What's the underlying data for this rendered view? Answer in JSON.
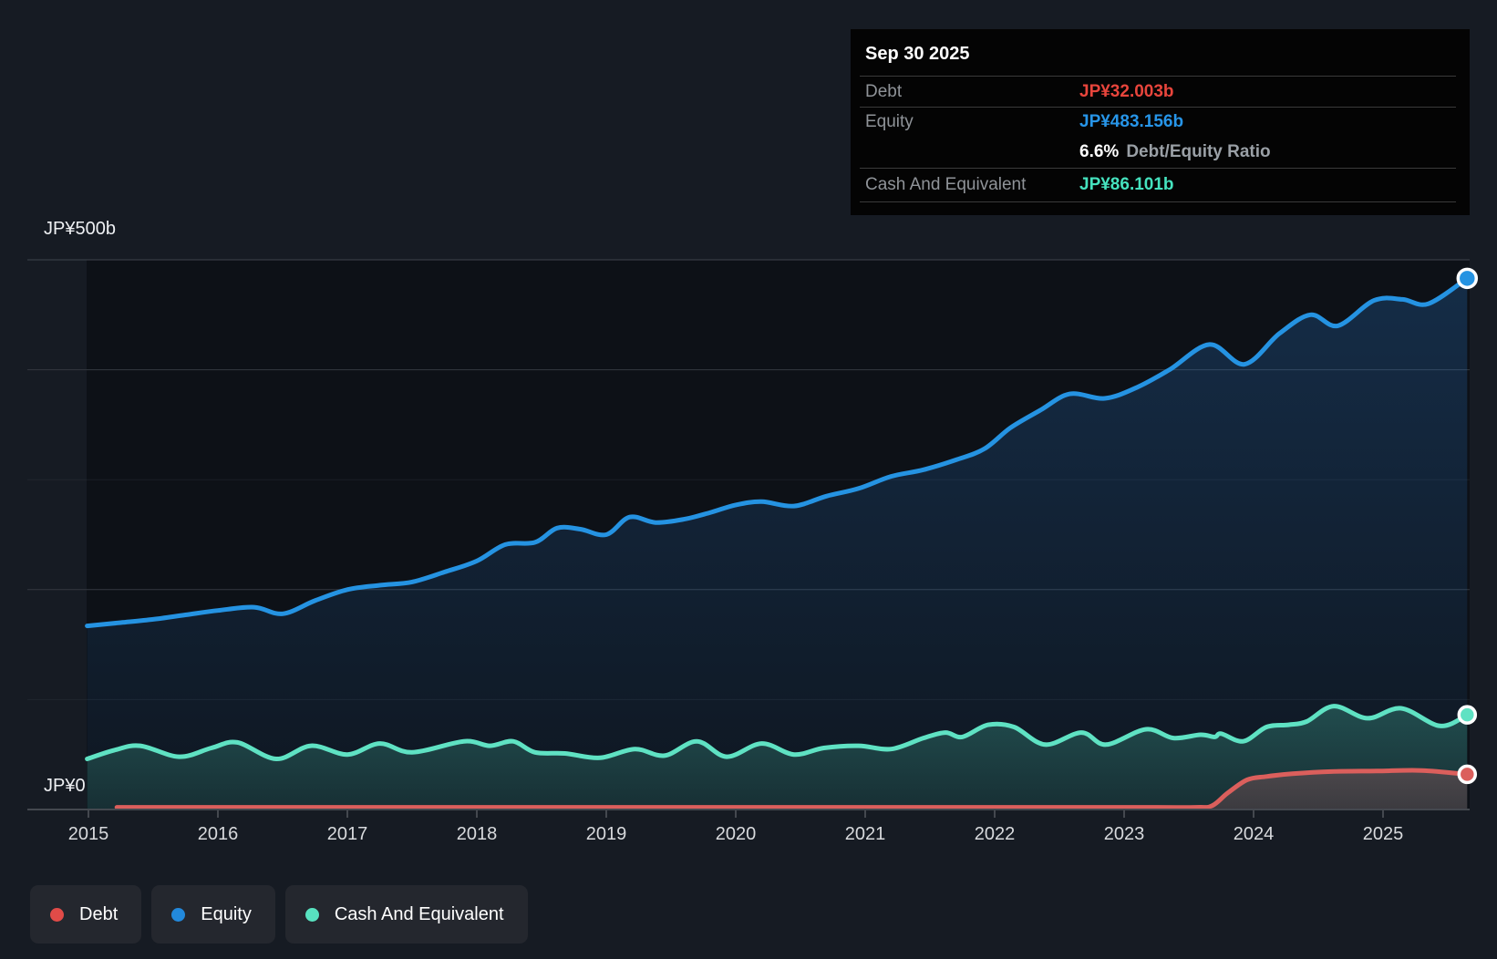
{
  "tooltip": {
    "date": "Sep 30 2025",
    "rows": [
      {
        "label": "Debt",
        "value": "JP¥32.003b",
        "color": "#e8453c"
      },
      {
        "label": "Equity",
        "value": "JP¥483.156b",
        "color": "#2795e8"
      },
      {
        "label": "Cash And Equivalent",
        "value": "JP¥86.101b",
        "color": "#45e2be"
      }
    ],
    "ratio_pct": "6.6%",
    "ratio_label": "Debt/Equity Ratio"
  },
  "axis": {
    "y_top_label": "JP¥500b",
    "y_zero_label": "JP¥0"
  },
  "legend": {
    "items": [
      {
        "label": "Debt",
        "color": "#e14b48"
      },
      {
        "label": "Equity",
        "color": "#2289dc"
      },
      {
        "label": "Cash And Equivalent",
        "color": "#58e2c0"
      }
    ]
  },
  "chart_data": {
    "type": "area",
    "title": "",
    "xlabel": "",
    "ylabel": "",
    "x_ticks": [
      "2015",
      "2016",
      "2017",
      "2018",
      "2019",
      "2020",
      "2021",
      "2022",
      "2023",
      "2024",
      "2025"
    ],
    "x_range": [
      2015,
      2025.65
    ],
    "ylim": [
      0,
      500
    ],
    "y_unit": "JP¥ billions",
    "y_gridlines": [
      100,
      200,
      300,
      400,
      500
    ],
    "legend_position": "bottom-left",
    "grid": true,
    "series": [
      {
        "name": "Equity",
        "line_color": "#2593e2",
        "end_value": 483.156,
        "points": [
          [
            2014.99,
            167
          ],
          [
            2015.25,
            170
          ],
          [
            2015.5,
            173
          ],
          [
            2015.75,
            177
          ],
          [
            2016.0,
            181
          ],
          [
            2016.28,
            184
          ],
          [
            2016.5,
            178
          ],
          [
            2016.75,
            190
          ],
          [
            2017.0,
            200
          ],
          [
            2017.25,
            204
          ],
          [
            2017.5,
            207
          ],
          [
            2017.75,
            216
          ],
          [
            2018.0,
            226
          ],
          [
            2018.22,
            241
          ],
          [
            2018.45,
            243
          ],
          [
            2018.62,
            256
          ],
          [
            2018.8,
            255
          ],
          [
            2019.0,
            250
          ],
          [
            2019.18,
            266
          ],
          [
            2019.38,
            261
          ],
          [
            2019.6,
            264
          ],
          [
            2019.8,
            270
          ],
          [
            2020.0,
            277
          ],
          [
            2020.2,
            280
          ],
          [
            2020.45,
            276
          ],
          [
            2020.7,
            285
          ],
          [
            2020.95,
            292
          ],
          [
            2021.2,
            303
          ],
          [
            2021.45,
            309
          ],
          [
            2021.7,
            318
          ],
          [
            2021.92,
            328
          ],
          [
            2022.12,
            347
          ],
          [
            2022.35,
            363
          ],
          [
            2022.58,
            378
          ],
          [
            2022.85,
            374
          ],
          [
            2023.1,
            384
          ],
          [
            2023.35,
            400
          ],
          [
            2023.66,
            423
          ],
          [
            2023.93,
            405
          ],
          [
            2024.2,
            433
          ],
          [
            2024.44,
            450
          ],
          [
            2024.65,
            440
          ],
          [
            2024.93,
            463
          ],
          [
            2025.15,
            464
          ],
          [
            2025.35,
            460
          ],
          [
            2025.65,
            483.156
          ]
        ]
      },
      {
        "name": "Cash And Equivalent",
        "line_color": "#5fe2c3",
        "end_value": 86.101,
        "points": [
          [
            2014.99,
            46
          ],
          [
            2015.2,
            54
          ],
          [
            2015.4,
            58
          ],
          [
            2015.7,
            48
          ],
          [
            2015.95,
            56
          ],
          [
            2016.15,
            61
          ],
          [
            2016.45,
            46
          ],
          [
            2016.72,
            58
          ],
          [
            2017.0,
            50
          ],
          [
            2017.25,
            60
          ],
          [
            2017.5,
            52
          ],
          [
            2017.9,
            62
          ],
          [
            2018.1,
            58
          ],
          [
            2018.28,
            62
          ],
          [
            2018.45,
            52
          ],
          [
            2018.68,
            51
          ],
          [
            2018.95,
            47
          ],
          [
            2019.22,
            55
          ],
          [
            2019.45,
            49
          ],
          [
            2019.7,
            62
          ],
          [
            2019.93,
            48
          ],
          [
            2020.2,
            60
          ],
          [
            2020.45,
            50
          ],
          [
            2020.68,
            56
          ],
          [
            2020.95,
            58
          ],
          [
            2021.2,
            55
          ],
          [
            2021.45,
            65
          ],
          [
            2021.62,
            70
          ],
          [
            2021.75,
            66
          ],
          [
            2021.95,
            77
          ],
          [
            2022.15,
            75
          ],
          [
            2022.39,
            59
          ],
          [
            2022.67,
            70
          ],
          [
            2022.86,
            59
          ],
          [
            2023.17,
            73
          ],
          [
            2023.38,
            65
          ],
          [
            2023.59,
            68
          ],
          [
            2023.7,
            66
          ],
          [
            2023.75,
            69
          ],
          [
            2023.92,
            62
          ],
          [
            2024.1,
            75
          ],
          [
            2024.27,
            77
          ],
          [
            2024.41,
            80
          ],
          [
            2024.62,
            94
          ],
          [
            2024.88,
            83
          ],
          [
            2025.14,
            92
          ],
          [
            2025.44,
            76
          ],
          [
            2025.65,
            86.101
          ]
        ]
      },
      {
        "name": "Debt",
        "line_color": "#db5f5c",
        "end_value": 32.003,
        "points": [
          [
            2015.22,
            2
          ],
          [
            2016.0,
            2
          ],
          [
            2017.0,
            2
          ],
          [
            2018.0,
            2
          ],
          [
            2019.0,
            2
          ],
          [
            2020.0,
            2
          ],
          [
            2021.0,
            2
          ],
          [
            2022.0,
            2
          ],
          [
            2023.0,
            2
          ],
          [
            2023.55,
            2
          ],
          [
            2023.68,
            3.5
          ],
          [
            2023.8,
            15
          ],
          [
            2023.95,
            27
          ],
          [
            2024.1,
            30
          ],
          [
            2024.3,
            32.5
          ],
          [
            2024.6,
            34.5
          ],
          [
            2024.95,
            35
          ],
          [
            2025.3,
            35.5
          ],
          [
            2025.65,
            32.003
          ]
        ]
      }
    ]
  }
}
